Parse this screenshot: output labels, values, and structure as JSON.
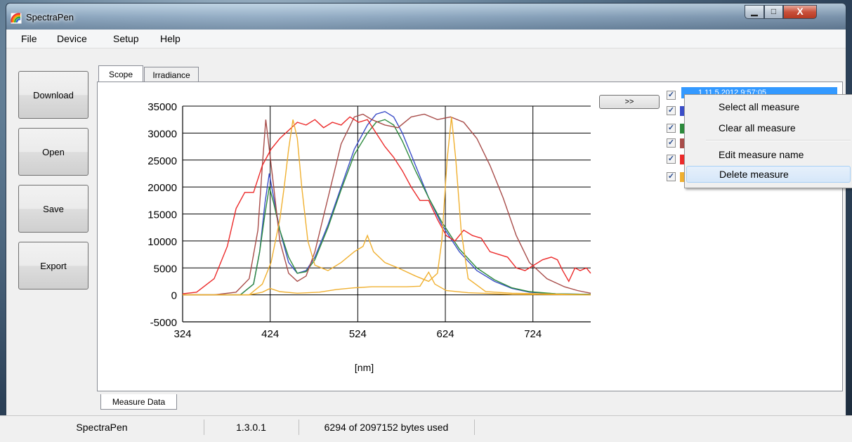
{
  "window": {
    "title": "SpectraPen",
    "minimize_glyph": "▁",
    "maximize_glyph": "□",
    "close_glyph": "X"
  },
  "menu": [
    "File",
    "Device",
    "Setup",
    "Help"
  ],
  "sidebar_buttons": [
    "Download",
    "Open",
    "Save",
    "Export"
  ],
  "tabs": [
    "Scope",
    "Irradiance"
  ],
  "bottom_tab": "Measure Data",
  "expand_button": ">>",
  "legend": {
    "selected_label": "1     11.5.2012 9:57:05",
    "checked_glyph": "✓",
    "swatches": [
      "#3a4dc8",
      "#2c8a3c",
      "#a84d4a",
      "#ec2a2a",
      "#f0b030"
    ]
  },
  "context_menu": {
    "items": [
      "Select all measure",
      "Clear all measure",
      "Edit measure name",
      "Delete measure"
    ],
    "highlighted": "Delete measure"
  },
  "status": {
    "app": "SpectraPen",
    "version": "1.3.0.1",
    "usage": "6294 of 2097152 bytes used"
  },
  "chart_data": {
    "type": "line",
    "xlabel": "[nm]",
    "ylabel": "",
    "xlim": [
      324,
      790
    ],
    "ylim": [
      -5000,
      35000
    ],
    "xticks": [
      324,
      424,
      524,
      624,
      724
    ],
    "yticks": [
      35000,
      30000,
      25000,
      20000,
      15000,
      10000,
      5000,
      0,
      -5000
    ],
    "grid": true,
    "series": [
      {
        "color": "#3a4dc8",
        "points": [
          [
            324,
            0
          ],
          [
            390,
            0
          ],
          [
            405,
            2000
          ],
          [
            412,
            8000
          ],
          [
            418,
            17000
          ],
          [
            423,
            22500
          ],
          [
            428,
            18000
          ],
          [
            435,
            12000
          ],
          [
            445,
            6000
          ],
          [
            455,
            4000
          ],
          [
            465,
            4500
          ],
          [
            475,
            7000
          ],
          [
            490,
            13000
          ],
          [
            505,
            20000
          ],
          [
            520,
            27000
          ],
          [
            535,
            31500
          ],
          [
            545,
            33500
          ],
          [
            555,
            34000
          ],
          [
            565,
            33000
          ],
          [
            575,
            30000
          ],
          [
            590,
            24000
          ],
          [
            605,
            18000
          ],
          [
            620,
            13000
          ],
          [
            640,
            8000
          ],
          [
            660,
            4500
          ],
          [
            680,
            2500
          ],
          [
            700,
            1200
          ],
          [
            720,
            500
          ],
          [
            750,
            200
          ],
          [
            790,
            100
          ]
        ]
      },
      {
        "color": "#2c8a3c",
        "points": [
          [
            324,
            0
          ],
          [
            390,
            0
          ],
          [
            405,
            2000
          ],
          [
            412,
            8000
          ],
          [
            418,
            15000
          ],
          [
            423,
            20000
          ],
          [
            428,
            17000
          ],
          [
            435,
            12000
          ],
          [
            445,
            7000
          ],
          [
            455,
            4000
          ],
          [
            465,
            4300
          ],
          [
            475,
            6500
          ],
          [
            490,
            12500
          ],
          [
            505,
            19500
          ],
          [
            520,
            26000
          ],
          [
            535,
            30000
          ],
          [
            545,
            32000
          ],
          [
            555,
            32500
          ],
          [
            565,
            31500
          ],
          [
            575,
            28500
          ],
          [
            590,
            23000
          ],
          [
            605,
            18000
          ],
          [
            620,
            13500
          ],
          [
            640,
            8500
          ],
          [
            660,
            5000
          ],
          [
            680,
            2800
          ],
          [
            700,
            1300
          ],
          [
            720,
            600
          ],
          [
            750,
            200
          ],
          [
            790,
            100
          ]
        ]
      },
      {
        "color": "#a84d4a",
        "points": [
          [
            324,
            0
          ],
          [
            360,
            0
          ],
          [
            385,
            500
          ],
          [
            400,
            3000
          ],
          [
            410,
            12000
          ],
          [
            415,
            24000
          ],
          [
            419,
            32500
          ],
          [
            423,
            27000
          ],
          [
            428,
            20000
          ],
          [
            435,
            10000
          ],
          [
            445,
            4000
          ],
          [
            455,
            2500
          ],
          [
            465,
            3500
          ],
          [
            475,
            8000
          ],
          [
            490,
            18000
          ],
          [
            505,
            28000
          ],
          [
            520,
            33000
          ],
          [
            530,
            33500
          ],
          [
            540,
            32500
          ],
          [
            555,
            31500
          ],
          [
            570,
            31000
          ],
          [
            585,
            33000
          ],
          [
            600,
            33500
          ],
          [
            615,
            32500
          ],
          [
            630,
            33000
          ],
          [
            645,
            32000
          ],
          [
            660,
            29000
          ],
          [
            675,
            24000
          ],
          [
            690,
            18000
          ],
          [
            705,
            11000
          ],
          [
            720,
            6000
          ],
          [
            740,
            3000
          ],
          [
            760,
            1500
          ],
          [
            775,
            800
          ],
          [
            790,
            300
          ]
        ]
      },
      {
        "color": "#ec2a2a",
        "points": [
          [
            324,
            200
          ],
          [
            340,
            500
          ],
          [
            360,
            3000
          ],
          [
            375,
            9000
          ],
          [
            385,
            16000
          ],
          [
            395,
            19000
          ],
          [
            405,
            19000
          ],
          [
            415,
            24000
          ],
          [
            425,
            27000
          ],
          [
            435,
            29000
          ],
          [
            445,
            30500
          ],
          [
            455,
            32000
          ],
          [
            465,
            31500
          ],
          [
            475,
            32500
          ],
          [
            485,
            31000
          ],
          [
            495,
            32000
          ],
          [
            505,
            31500
          ],
          [
            515,
            33000
          ],
          [
            525,
            32000
          ],
          [
            535,
            32500
          ],
          [
            545,
            30000
          ],
          [
            555,
            27500
          ],
          [
            565,
            25500
          ],
          [
            575,
            23000
          ],
          [
            585,
            20000
          ],
          [
            595,
            17500
          ],
          [
            605,
            17500
          ],
          [
            615,
            14000
          ],
          [
            625,
            11000
          ],
          [
            635,
            10000
          ],
          [
            645,
            12000
          ],
          [
            655,
            11000
          ],
          [
            665,
            10500
          ],
          [
            675,
            8000
          ],
          [
            685,
            7500
          ],
          [
            695,
            7000
          ],
          [
            705,
            5000
          ],
          [
            715,
            4500
          ],
          [
            725,
            5500
          ],
          [
            735,
            6500
          ],
          [
            745,
            7000
          ],
          [
            752,
            6500
          ],
          [
            758,
            4500
          ],
          [
            765,
            2500
          ],
          [
            772,
            5000
          ],
          [
            778,
            4500
          ],
          [
            785,
            5000
          ],
          [
            790,
            4000
          ]
        ]
      },
      {
        "color": "#f0b030",
        "points": [
          [
            324,
            0
          ],
          [
            400,
            0
          ],
          [
            415,
            2000
          ],
          [
            425,
            6000
          ],
          [
            435,
            14000
          ],
          [
            440,
            20000
          ],
          [
            445,
            27000
          ],
          [
            450,
            32500
          ],
          [
            455,
            29000
          ],
          [
            460,
            20000
          ],
          [
            467,
            10000
          ],
          [
            475,
            5500
          ],
          [
            490,
            4500
          ],
          [
            505,
            6000
          ],
          [
            520,
            8000
          ],
          [
            530,
            9000
          ],
          [
            535,
            11000
          ],
          [
            542,
            8000
          ],
          [
            555,
            6000
          ],
          [
            570,
            5000
          ],
          [
            590,
            3500
          ],
          [
            605,
            2500
          ],
          [
            615,
            4000
          ],
          [
            620,
            10000
          ],
          [
            626,
            25000
          ],
          [
            631,
            33000
          ],
          [
            636,
            25000
          ],
          [
            642,
            12000
          ],
          [
            650,
            3000
          ],
          [
            670,
            600
          ],
          [
            700,
            300
          ],
          [
            790,
            0
          ]
        ]
      },
      {
        "color": "#f0b030",
        "points": [
          [
            324,
            0
          ],
          [
            400,
            0
          ],
          [
            415,
            500
          ],
          [
            424,
            1200
          ],
          [
            435,
            600
          ],
          [
            455,
            300
          ],
          [
            480,
            500
          ],
          [
            500,
            1000
          ],
          [
            520,
            1300
          ],
          [
            540,
            1500
          ],
          [
            560,
            1500
          ],
          [
            580,
            1500
          ],
          [
            595,
            1600
          ],
          [
            605,
            4200
          ],
          [
            612,
            2000
          ],
          [
            625,
            800
          ],
          [
            650,
            400
          ],
          [
            700,
            100
          ],
          [
            790,
            0
          ]
        ]
      }
    ]
  }
}
